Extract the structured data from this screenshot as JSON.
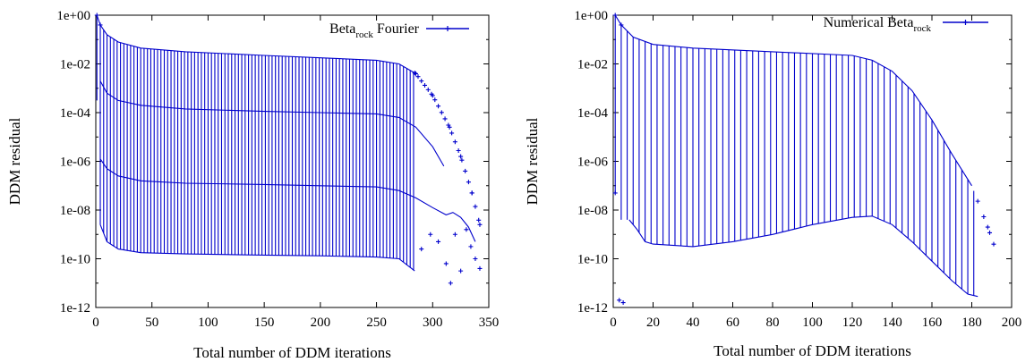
{
  "chart_data": [
    {
      "type": "line",
      "xlabel": "Total number of DDM iterations",
      "ylabel": "DDM residual",
      "xlim": [
        0,
        350
      ],
      "ylim_log10": [
        -12,
        0
      ],
      "log_y": true,
      "xticks": [
        "0",
        "50",
        "100",
        "150",
        "200",
        "250",
        "300",
        "350"
      ],
      "yticks": [
        "1e+00",
        "1e-02",
        "1e-04",
        "1e-06",
        "1e-08",
        "1e-10",
        "1e-12"
      ],
      "legend": {
        "main": "Beta",
        "sub": "rock",
        "suffix": " Fourier",
        "position": "top-right"
      },
      "series": [
        {
          "name": "Beta_rock Fourier",
          "color": "#0000cc",
          "top_envelope_log10": [
            [
              1,
              0
            ],
            [
              4,
              -0.4
            ],
            [
              10,
              -0.8
            ],
            [
              20,
              -1.1
            ],
            [
              40,
              -1.35
            ],
            [
              80,
              -1.5
            ],
            [
              150,
              -1.65
            ],
            [
              200,
              -1.75
            ],
            [
              250,
              -1.85
            ],
            [
              270,
              -2.0
            ],
            [
              285,
              -2.4
            ],
            [
              300,
              -3.3
            ],
            [
              315,
              -4.6
            ],
            [
              325,
              -5.8
            ],
            [
              335,
              -7.3
            ],
            [
              342,
              -8.6
            ]
          ],
          "upper_mid_envelope_log10": [
            [
              4,
              -2.7
            ],
            [
              10,
              -3.2
            ],
            [
              20,
              -3.5
            ],
            [
              40,
              -3.7
            ],
            [
              80,
              -3.85
            ],
            [
              150,
              -3.95
            ],
            [
              200,
              -4.0
            ],
            [
              250,
              -4.05
            ],
            [
              270,
              -4.2
            ],
            [
              285,
              -4.6
            ],
            [
              300,
              -5.4
            ],
            [
              310,
              -6.2
            ]
          ],
          "lower_mid_envelope_log10": [
            [
              4,
              -5.9
            ],
            [
              10,
              -6.3
            ],
            [
              20,
              -6.6
            ],
            [
              40,
              -6.8
            ],
            [
              80,
              -6.9
            ],
            [
              150,
              -6.95
            ],
            [
              200,
              -7.0
            ],
            [
              250,
              -7.05
            ],
            [
              270,
              -7.2
            ],
            [
              285,
              -7.5
            ],
            [
              300,
              -7.9
            ],
            [
              312,
              -8.2
            ],
            [
              318,
              -8.1
            ],
            [
              325,
              -8.3
            ],
            [
              332,
              -8.7
            ],
            [
              338,
              -9.3
            ]
          ],
          "bottom_envelope_log10": [
            [
              4,
              -8.6
            ],
            [
              10,
              -9.3
            ],
            [
              20,
              -9.6
            ],
            [
              40,
              -9.75
            ],
            [
              80,
              -9.8
            ],
            [
              150,
              -9.85
            ],
            [
              200,
              -9.88
            ],
            [
              250,
              -9.93
            ],
            [
              270,
              -10.0
            ],
            [
              284,
              -10.5
            ]
          ],
          "tail_points_log10": [
            [
              290,
              -9.6
            ],
            [
              298,
              -9.0
            ],
            [
              305,
              -9.3
            ],
            [
              312,
              -10.2
            ],
            [
              316,
              -11.0
            ],
            [
              320,
              -9.0
            ],
            [
              325,
              -10.5
            ],
            [
              330,
              -8.8
            ],
            [
              334,
              -9.5
            ],
            [
              338,
              -10.0
            ],
            [
              342,
              -10.4
            ]
          ],
          "iteration_blocks_end": 284
        }
      ]
    },
    {
      "type": "line",
      "xlabel": "Total number of DDM iterations",
      "ylabel": "DDM residual",
      "xlim": [
        0,
        200
      ],
      "ylim_log10": [
        -12,
        0
      ],
      "log_y": true,
      "xticks": [
        "0",
        "20",
        "40",
        "60",
        "80",
        "100",
        "120",
        "140",
        "160",
        "180",
        "200"
      ],
      "yticks": [
        "1e+00",
        "1e-02",
        "1e-04",
        "1e-06",
        "1e-08",
        "1e-10",
        "1e-12"
      ],
      "legend": {
        "main": "Numerical Beta",
        "sub": "rock",
        "suffix": "",
        "position": "top-right"
      },
      "series": [
        {
          "name": "Numerical Beta_rock",
          "color": "#0000cc",
          "top_envelope_log10": [
            [
              1,
              0
            ],
            [
              4,
              -0.4
            ],
            [
              10,
              -0.9
            ],
            [
              20,
              -1.2
            ],
            [
              40,
              -1.35
            ],
            [
              80,
              -1.5
            ],
            [
              120,
              -1.65
            ],
            [
              130,
              -1.85
            ],
            [
              140,
              -2.3
            ],
            [
              150,
              -3.1
            ],
            [
              160,
              -4.3
            ],
            [
              170,
              -5.7
            ],
            [
              180,
              -7.0
            ],
            [
              188,
              -8.7
            ],
            [
              191,
              -9.4
            ]
          ],
          "bottom_envelope_log10": [
            [
              8,
              -8.4
            ],
            [
              12,
              -8.8
            ],
            [
              16,
              -9.3
            ],
            [
              20,
              -9.4
            ],
            [
              40,
              -9.5
            ],
            [
              60,
              -9.3
            ],
            [
              80,
              -9.0
            ],
            [
              100,
              -8.6
            ],
            [
              120,
              -8.3
            ],
            [
              130,
              -8.25
            ],
            [
              140,
              -8.6
            ],
            [
              150,
              -9.3
            ],
            [
              160,
              -10.1
            ],
            [
              170,
              -10.9
            ],
            [
              178,
              -11.45
            ],
            [
              183,
              -11.55
            ]
          ],
          "early_points_log10": [
            [
              1,
              -7.3
            ],
            [
              3,
              -11.7
            ],
            [
              5,
              -11.8
            ]
          ],
          "iteration_blocks_end": 183
        }
      ]
    }
  ]
}
